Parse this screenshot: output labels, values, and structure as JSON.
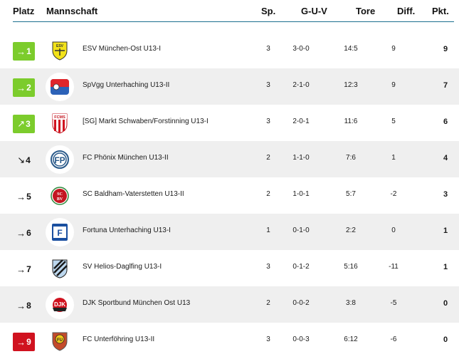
{
  "header": {
    "platz": "Platz",
    "mannschaft": "Mannschaft",
    "sp": "Sp.",
    "guv": "G-U-V",
    "tore": "Tore",
    "diff": "Diff.",
    "pkt": "Pkt."
  },
  "colors": {
    "promotion": "#7ccc2c",
    "relegation": "#d0121f",
    "header_line": "#1d6f8f",
    "row_alt": "#efefef"
  },
  "rows": [
    {
      "rank": "1",
      "trend": "→",
      "badge": "promotion",
      "team": "ESV München-Ost U13-I",
      "logo": "esv-logo",
      "sp": "3",
      "guv": "3-0-0",
      "tore": "14:5",
      "diff": "9",
      "pkt": "9"
    },
    {
      "rank": "2",
      "trend": "→",
      "badge": "promotion",
      "team": "SpVgg Unterhaching U13-II",
      "logo": "spvgg-logo",
      "sp": "3",
      "guv": "2-1-0",
      "tore": "12:3",
      "diff": "9",
      "pkt": "7"
    },
    {
      "rank": "3",
      "trend": "↗",
      "badge": "promotion",
      "team": "[SG] Markt Schwaben/Forstinning U13-I",
      "logo": "fcms-logo",
      "sp": "3",
      "guv": "2-0-1",
      "tore": "11:6",
      "diff": "5",
      "pkt": "6"
    },
    {
      "rank": "4",
      "trend": "↘",
      "badge": "none",
      "team": "FC Phönix München U13-II",
      "logo": "fcp-logo",
      "sp": "2",
      "guv": "1-1-0",
      "tore": "7:6",
      "diff": "1",
      "pkt": "4"
    },
    {
      "rank": "5",
      "trend": "→",
      "badge": "none",
      "team": "SC Baldham-Vaterstetten U13-II",
      "logo": "scbv-logo",
      "sp": "2",
      "guv": "1-0-1",
      "tore": "5:7",
      "diff": "-2",
      "pkt": "3"
    },
    {
      "rank": "6",
      "trend": "→",
      "badge": "none",
      "team": "Fortuna Unterhaching U13-I",
      "logo": "fortuna-logo",
      "sp": "1",
      "guv": "0-1-0",
      "tore": "2:2",
      "diff": "0",
      "pkt": "1"
    },
    {
      "rank": "7",
      "trend": "→",
      "badge": "none",
      "team": "SV Helios-Daglfing U13-I",
      "logo": "helios-logo",
      "sp": "3",
      "guv": "0-1-2",
      "tore": "5:16",
      "diff": "-11",
      "pkt": "1"
    },
    {
      "rank": "8",
      "trend": "→",
      "badge": "none",
      "team": "DJK Sportbund München Ost U13",
      "logo": "djk-logo",
      "sp": "2",
      "guv": "0-0-2",
      "tore": "3:8",
      "diff": "-5",
      "pkt": "0"
    },
    {
      "rank": "9",
      "trend": "→",
      "badge": "relegation",
      "team": "FC Unterföhring U13-II",
      "logo": "fcu-logo",
      "sp": "3",
      "guv": "0-0-3",
      "tore": "6:12",
      "diff": "-6",
      "pkt": "0"
    }
  ]
}
